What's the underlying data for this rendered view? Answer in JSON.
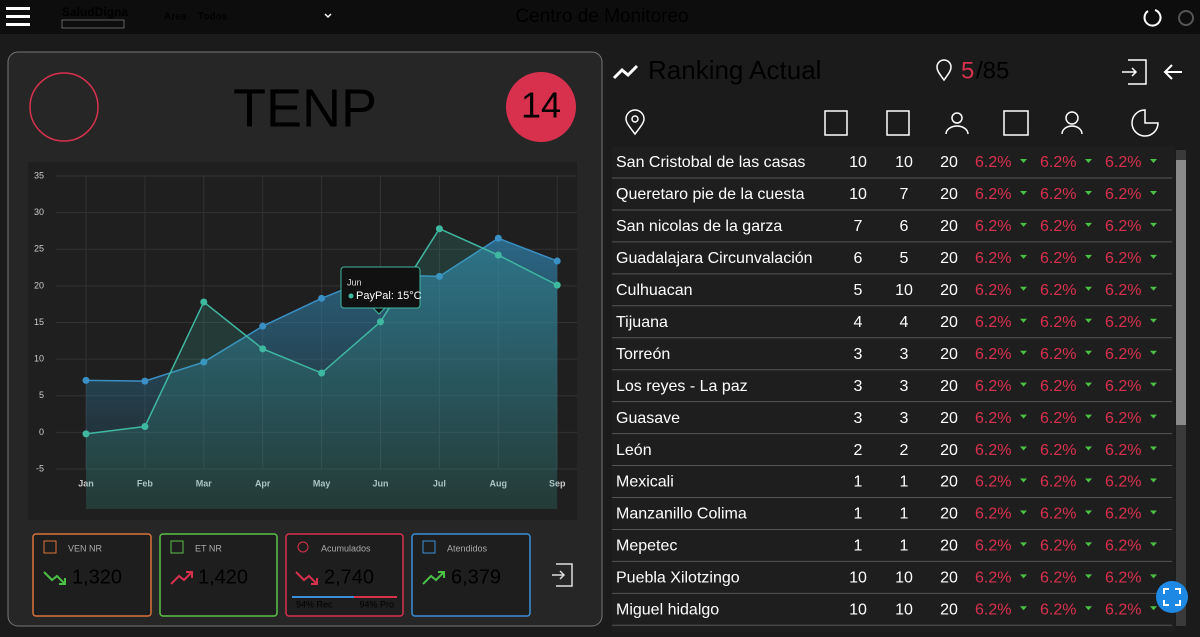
{
  "topbar": {
    "logo": "SaludDigna",
    "area_label": "Area",
    "area_value": "Todos",
    "title": "Centro de Monitoreo"
  },
  "panel": {
    "title": "TENP",
    "badge": "14"
  },
  "chart_data": {
    "type": "line",
    "categories": [
      "Jan",
      "Feb",
      "Mar",
      "Apr",
      "May",
      "Jun",
      "Jul",
      "Aug",
      "Sep"
    ],
    "series": [
      {
        "color": "#3a8fc4",
        "values": [
          7.1,
          7,
          9.6,
          14.5,
          18.3,
          21.5,
          21.3,
          26.5,
          23.4
        ]
      },
      {
        "name": "PayPal",
        "color": "#3fb8a2",
        "values": [
          -0.2,
          0.8,
          17.8,
          11.4,
          8.1,
          15.1,
          27.8,
          24.2,
          20.1
        ]
      }
    ],
    "ylim": [
      -5,
      35
    ],
    "yticks": [
      -5,
      0,
      5,
      10,
      15,
      20,
      25,
      30,
      35
    ],
    "grid": true,
    "tooltip": {
      "title": "Jun",
      "text": "PayPal: 15°C"
    }
  },
  "cards": [
    {
      "label": "VEN NR",
      "value": "1,320"
    },
    {
      "label": "ET NR",
      "value": "1,420"
    },
    {
      "label": "Acumulados",
      "value": "2,740",
      "bar_left": "94% Rec",
      "bar_right": "94% Pro"
    },
    {
      "label": "Atendidos",
      "value": "6,379"
    }
  ],
  "ranking": {
    "title": "Ranking Actual",
    "position": "5",
    "total": "/85",
    "rows": [
      [
        "San Cristobal de las casas",
        10,
        10,
        20,
        "6.2%",
        "6.2%",
        "6.2%"
      ],
      [
        "Queretaro pie de la cuesta",
        10,
        7,
        20,
        "6.2%",
        "6.2%",
        "6.2%"
      ],
      [
        "San nicolas de la garza",
        7,
        6,
        20,
        "6.2%",
        "6.2%",
        "6.2%"
      ],
      [
        "Guadalajara Circunvalación",
        6,
        5,
        20,
        "6.2%",
        "6.2%",
        "6.2%"
      ],
      [
        "Culhuacan",
        5,
        10,
        20,
        "6.2%",
        "6.2%",
        "6.2%"
      ],
      [
        "Tijuana",
        4,
        4,
        20,
        "6.2%",
        "6.2%",
        "6.2%"
      ],
      [
        "Torreón",
        3,
        3,
        20,
        "6.2%",
        "6.2%",
        "6.2%"
      ],
      [
        "Los reyes - La paz",
        3,
        3,
        20,
        "6.2%",
        "6.2%",
        "6.2%"
      ],
      [
        "Guasave",
        3,
        3,
        20,
        "6.2%",
        "6.2%",
        "6.2%"
      ],
      [
        "León",
        2,
        2,
        20,
        "6.2%",
        "6.2%",
        "6.2%"
      ],
      [
        "Mexicali",
        1,
        1,
        20,
        "6.2%",
        "6.2%",
        "6.2%"
      ],
      [
        "Manzanillo Colima",
        1,
        1,
        20,
        "6.2%",
        "6.2%",
        "6.2%"
      ],
      [
        "Mepetec",
        1,
        1,
        20,
        "6.2%",
        "6.2%",
        "6.2%"
      ],
      [
        "Puebla Xilotzingo",
        10,
        10,
        20,
        "6.2%",
        "6.2%",
        "6.2%"
      ],
      [
        "Miguel hidalgo",
        10,
        10,
        20,
        "6.2%",
        "6.2%",
        "6.2%"
      ]
    ]
  }
}
